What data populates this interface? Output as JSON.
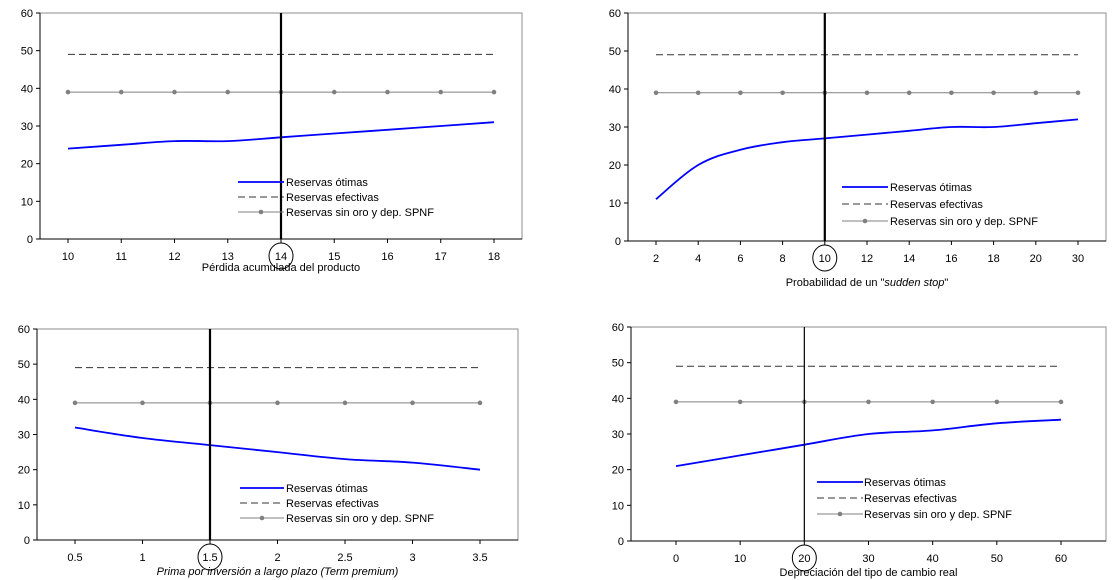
{
  "chart_data": [
    {
      "type": "line",
      "xlabel": "Pérdida acumulada del producto",
      "categories": [
        "10",
        "11",
        "12",
        "13",
        "14",
        "15",
        "16",
        "17",
        "18"
      ],
      "ylim": [
        0,
        60
      ],
      "yticks": [
        0,
        10,
        20,
        30,
        40,
        50,
        60
      ],
      "vline_category": "14",
      "circled_tick": "14",
      "legend_position": "lower-right",
      "grid": false,
      "series": [
        {
          "name": "Reservas ótimas",
          "style": "solid",
          "color": "#0000ff",
          "values": [
            24,
            25,
            26,
            26,
            27,
            28,
            29,
            30,
            31
          ]
        },
        {
          "name": "Reservas efectivas",
          "style": "dashed",
          "color": "#333333",
          "values": [
            49,
            49,
            49,
            49,
            49,
            49,
            49,
            49,
            49
          ]
        },
        {
          "name": "Reservas sin oro y dep. SPNF",
          "style": "marker-line",
          "color": "#808080",
          "values": [
            39,
            39,
            39,
            39,
            39,
            39,
            39,
            39,
            39
          ]
        }
      ]
    },
    {
      "type": "line",
      "xlabel": "Probabilidad de un \"sudden stop\"",
      "xlabel_parts": [
        "Probabilidad de un \"",
        "sudden stop",
        "\""
      ],
      "categories": [
        "2",
        "4",
        "6",
        "8",
        "10",
        "12",
        "14",
        "16",
        "18",
        "20",
        "30"
      ],
      "ylim": [
        0,
        60
      ],
      "yticks": [
        0,
        10,
        20,
        30,
        40,
        50,
        60
      ],
      "vline_category": "10",
      "circled_tick": "10",
      "legend_position": "lower-right",
      "grid": false,
      "series": [
        {
          "name": "Reservas ótimas",
          "style": "solid",
          "color": "#0000ff",
          "values": [
            11,
            20,
            24,
            26,
            27,
            28,
            29,
            30,
            30,
            31,
            32
          ]
        },
        {
          "name": "Reservas efectivas",
          "style": "dashed",
          "color": "#333333",
          "values": [
            49,
            49,
            49,
            49,
            49,
            49,
            49,
            49,
            49,
            49,
            49
          ]
        },
        {
          "name": "Reservas sin oro y dep. SPNF",
          "style": "marker-line",
          "color": "#808080",
          "values": [
            39,
            39,
            39,
            39,
            39,
            39,
            39,
            39,
            39,
            39,
            39
          ]
        }
      ]
    },
    {
      "type": "line",
      "xlabel": "Prima por inversión a largo plazo (Term premium)",
      "xlabel_italic": true,
      "categories": [
        "0.5",
        "1",
        "1.5",
        "2",
        "2.5",
        "3",
        "3.5"
      ],
      "ylim": [
        0,
        60
      ],
      "yticks": [
        0,
        10,
        20,
        30,
        40,
        50,
        60
      ],
      "vline_category": "1.5",
      "circled_tick": "1.5",
      "legend_position": "lower-right",
      "grid": false,
      "series": [
        {
          "name": "Reservas ótimas",
          "style": "solid",
          "color": "#0000ff",
          "values": [
            32,
            29,
            27,
            25,
            23,
            22,
            20
          ]
        },
        {
          "name": "Reservas efectivas",
          "style": "dashed",
          "color": "#333333",
          "values": [
            49,
            49,
            49,
            49,
            49,
            49,
            49
          ]
        },
        {
          "name": "Reservas sin oro y dep. SPNF",
          "style": "marker-line",
          "color": "#808080",
          "values": [
            39,
            39,
            39,
            39,
            39,
            39,
            39
          ]
        }
      ]
    },
    {
      "type": "line",
      "xlabel": "Depreciación del tipo de cambio real",
      "categories": [
        "0",
        "10",
        "20",
        "30",
        "40",
        "50",
        "60"
      ],
      "ylim": [
        0,
        60
      ],
      "yticks": [
        0,
        10,
        20,
        30,
        40,
        50,
        60
      ],
      "vline_category": "20",
      "circled_tick": "20",
      "legend_position": "lower-right",
      "grid": false,
      "series": [
        {
          "name": "Reservas ótimas",
          "style": "solid",
          "color": "#0000ff",
          "values": [
            21,
            24,
            27,
            30,
            31,
            33,
            34
          ]
        },
        {
          "name": "Reservas efectivas",
          "style": "dashed",
          "color": "#333333",
          "values": [
            49,
            49,
            49,
            49,
            49,
            49,
            49
          ]
        },
        {
          "name": "Reservas sin oro y dep. SPNF",
          "style": "marker-line",
          "color": "#808080",
          "values": [
            39,
            39,
            39,
            39,
            39,
            39,
            39
          ]
        }
      ]
    }
  ]
}
